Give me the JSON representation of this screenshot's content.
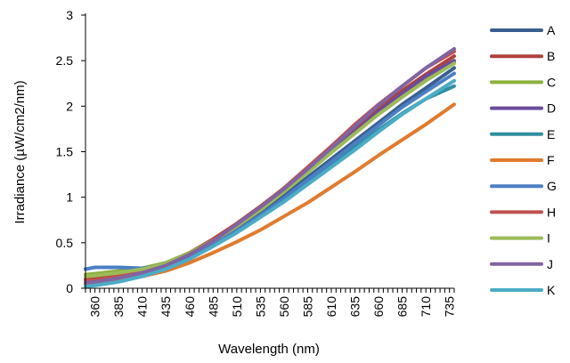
{
  "chart_data": {
    "type": "line",
    "title": "",
    "xlabel": "Wavelength (nm)",
    "ylabel": "Irradiance (µW/cm2/nm)",
    "x_ticks": [
      360,
      385,
      410,
      435,
      460,
      485,
      510,
      535,
      560,
      585,
      610,
      635,
      660,
      685,
      710,
      735
    ],
    "y_ticks": [
      "0",
      "0.5",
      "1",
      "1.5",
      "2",
      "2.5",
      "3"
    ],
    "xlim": [
      350,
      740
    ],
    "ylim": [
      0,
      3
    ],
    "grid": false,
    "legend_position": "right",
    "x": [
      350,
      360,
      385,
      410,
      435,
      460,
      485,
      510,
      535,
      560,
      585,
      610,
      635,
      660,
      685,
      710,
      740
    ],
    "series": [
      {
        "name": "A",
        "color": "#3A5F8F",
        "values": [
          0.05,
          0.06,
          0.1,
          0.16,
          0.24,
          0.36,
          0.5,
          0.66,
          0.83,
          1.02,
          1.22,
          1.42,
          1.62,
          1.82,
          2.02,
          2.2,
          2.42
        ]
      },
      {
        "name": "B",
        "color": "#B0403C",
        "values": [
          0.1,
          0.11,
          0.14,
          0.19,
          0.27,
          0.39,
          0.54,
          0.71,
          0.9,
          1.1,
          1.32,
          1.54,
          1.76,
          1.97,
          2.17,
          2.35,
          2.55
        ]
      },
      {
        "name": "C",
        "color": "#8DB03C",
        "values": [
          0.15,
          0.16,
          0.19,
          0.22,
          0.28,
          0.39,
          0.53,
          0.69,
          0.87,
          1.07,
          1.28,
          1.5,
          1.72,
          1.92,
          2.12,
          2.3,
          2.48
        ]
      },
      {
        "name": "D",
        "color": "#6A4C9C",
        "values": [
          0.04,
          0.05,
          0.09,
          0.15,
          0.23,
          0.36,
          0.51,
          0.68,
          0.86,
          1.06,
          1.28,
          1.5,
          1.72,
          1.94,
          2.14,
          2.33,
          2.5
        ]
      },
      {
        "name": "E",
        "color": "#2F8FA0",
        "values": [
          0.05,
          0.06,
          0.1,
          0.16,
          0.23,
          0.34,
          0.48,
          0.63,
          0.79,
          0.96,
          1.15,
          1.35,
          1.55,
          1.74,
          1.92,
          2.08,
          2.22
        ]
      },
      {
        "name": "F",
        "color": "#E07B2E",
        "values": [
          0.03,
          0.04,
          0.08,
          0.13,
          0.19,
          0.28,
          0.39,
          0.51,
          0.64,
          0.79,
          0.94,
          1.11,
          1.28,
          1.46,
          1.63,
          1.8,
          2.02
        ]
      },
      {
        "name": "G",
        "color": "#4A7FC4",
        "values": [
          0.21,
          0.23,
          0.23,
          0.22,
          0.26,
          0.35,
          0.48,
          0.63,
          0.8,
          0.99,
          1.19,
          1.39,
          1.59,
          1.79,
          1.99,
          2.16,
          2.36
        ]
      },
      {
        "name": "H",
        "color": "#C0504D",
        "values": [
          0.08,
          0.09,
          0.13,
          0.18,
          0.26,
          0.38,
          0.53,
          0.7,
          0.89,
          1.1,
          1.33,
          1.56,
          1.8,
          2.02,
          2.22,
          2.42,
          2.6
        ]
      },
      {
        "name": "I",
        "color": "#9BBB59",
        "values": [
          0.13,
          0.14,
          0.17,
          0.21,
          0.27,
          0.38,
          0.52,
          0.68,
          0.86,
          1.06,
          1.27,
          1.49,
          1.7,
          1.91,
          2.1,
          2.28,
          2.47
        ]
      },
      {
        "name": "J",
        "color": "#8064A2",
        "values": [
          0.06,
          0.07,
          0.11,
          0.17,
          0.25,
          0.37,
          0.52,
          0.7,
          0.89,
          1.09,
          1.31,
          1.54,
          1.78,
          2.01,
          2.22,
          2.42,
          2.63
        ]
      },
      {
        "name": "K",
        "color": "#4BACC6",
        "values": [
          0.02,
          0.03,
          0.07,
          0.13,
          0.21,
          0.32,
          0.46,
          0.61,
          0.78,
          0.95,
          1.14,
          1.33,
          1.52,
          1.72,
          1.91,
          2.08,
          2.28
        ]
      }
    ]
  }
}
